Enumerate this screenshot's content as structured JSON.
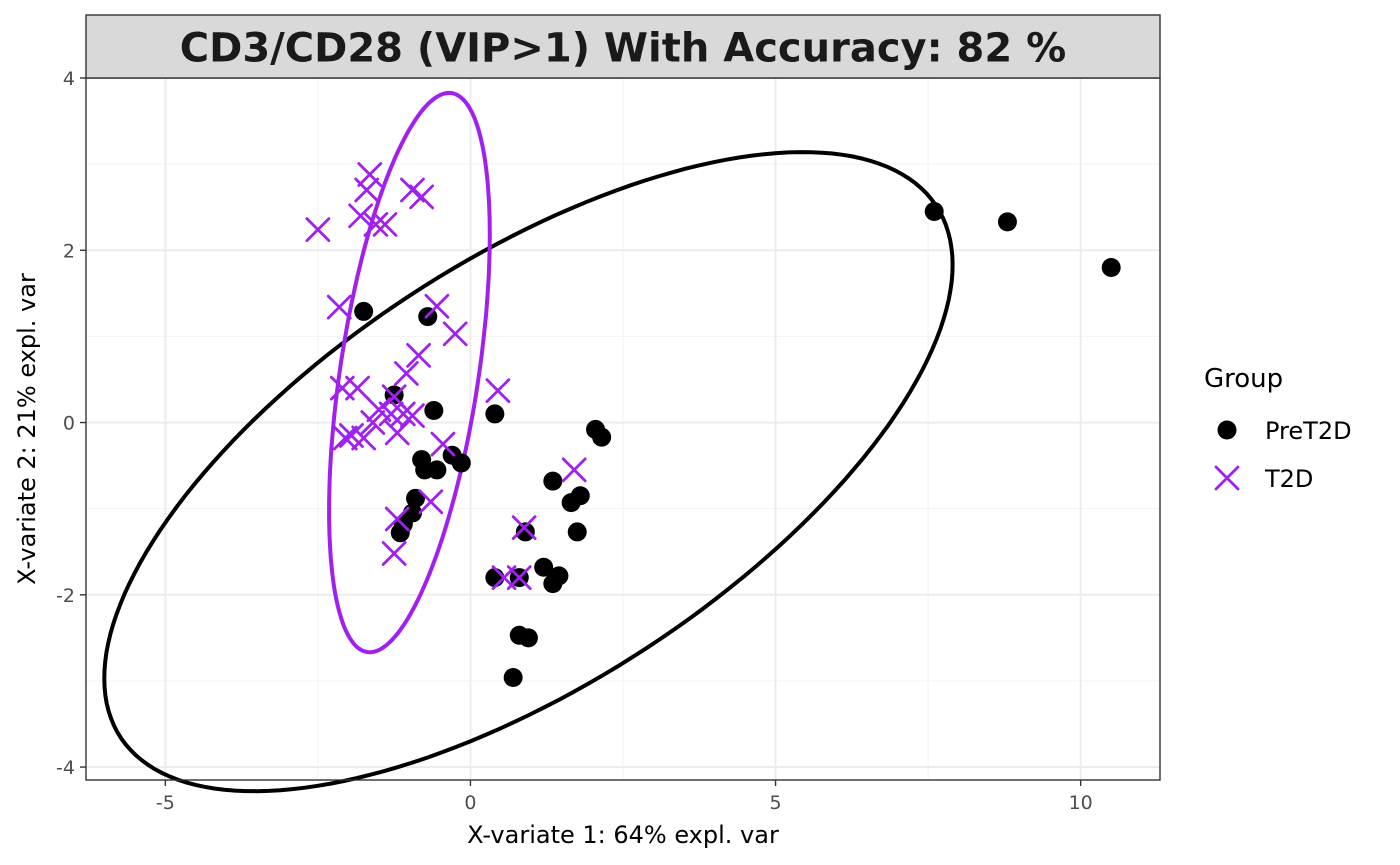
{
  "chart_data": {
    "type": "scatter",
    "title": "CD3/CD28 (VIP>1) With Accuracy: 82 %",
    "xlabel": "X-variate 1: 64% expl. var",
    "ylabel": "X-variate 2: 21% expl. var",
    "xlim": [
      -6.3,
      11.3
    ],
    "ylim": [
      -4.15,
      4.0
    ],
    "x_ticks": [
      -5,
      0,
      5,
      10
    ],
    "y_ticks": [
      -4,
      -2,
      0,
      2,
      4
    ],
    "grid": true,
    "legend_title": "Group",
    "legend_position": "right",
    "series": [
      {
        "name": "PreT2D",
        "color": "#000000",
        "marker": "circle",
        "points": [
          [
            7.6,
            2.45
          ],
          [
            8.8,
            2.33
          ],
          [
            10.5,
            1.8
          ],
          [
            -1.75,
            1.29
          ],
          [
            -0.7,
            1.23
          ],
          [
            -1.25,
            0.32
          ],
          [
            -0.6,
            0.14
          ],
          [
            0.4,
            0.1
          ],
          [
            2.05,
            -0.08
          ],
          [
            2.15,
            -0.17
          ],
          [
            -0.8,
            -0.43
          ],
          [
            -0.3,
            -0.38
          ],
          [
            -0.15,
            -0.47
          ],
          [
            -0.75,
            -0.55
          ],
          [
            -0.55,
            -0.55
          ],
          [
            1.35,
            -0.68
          ],
          [
            1.8,
            -0.85
          ],
          [
            1.65,
            -0.93
          ],
          [
            -0.9,
            -0.88
          ],
          [
            -0.95,
            -1.05
          ],
          [
            -1.1,
            -1.18
          ],
          [
            -1.15,
            -1.28
          ],
          [
            0.9,
            -1.27
          ],
          [
            1.75,
            -1.27
          ],
          [
            1.2,
            -1.68
          ],
          [
            1.45,
            -1.78
          ],
          [
            0.4,
            -1.8
          ],
          [
            0.8,
            -1.8
          ],
          [
            1.35,
            -1.87
          ],
          [
            0.8,
            -2.47
          ],
          [
            0.95,
            -2.5
          ],
          [
            0.7,
            -2.96
          ]
        ]
      },
      {
        "name": "T2D",
        "color": "#a020f0",
        "marker": "x",
        "points": [
          [
            -1.65,
            2.88
          ],
          [
            -1.7,
            2.7
          ],
          [
            -0.95,
            2.7
          ],
          [
            -0.8,
            2.62
          ],
          [
            -1.8,
            2.4
          ],
          [
            -1.55,
            2.3
          ],
          [
            -1.4,
            2.3
          ],
          [
            -2.5,
            2.24
          ],
          [
            -2.15,
            1.34
          ],
          [
            -0.55,
            1.35
          ],
          [
            -0.25,
            1.03
          ],
          [
            -0.85,
            0.78
          ],
          [
            -1.05,
            0.57
          ],
          [
            -2.1,
            0.4
          ],
          [
            -1.85,
            0.4
          ],
          [
            0.45,
            0.37
          ],
          [
            -1.25,
            0.3
          ],
          [
            -1.5,
            0.15
          ],
          [
            -1.3,
            0.1
          ],
          [
            -1.1,
            0.1
          ],
          [
            -0.95,
            0.08
          ],
          [
            -1.6,
            0.0
          ],
          [
            -1.2,
            -0.12
          ],
          [
            -1.95,
            -0.15
          ],
          [
            -2.05,
            -0.18
          ],
          [
            -1.75,
            -0.18
          ],
          [
            -0.45,
            -0.25
          ],
          [
            1.7,
            -0.55
          ],
          [
            -0.65,
            -0.92
          ],
          [
            -1.2,
            -1.12
          ],
          [
            0.88,
            -1.22
          ],
          [
            -1.25,
            -1.52
          ],
          [
            0.55,
            -1.8
          ],
          [
            0.8,
            -1.8
          ]
        ]
      }
    ],
    "ellipses": [
      {
        "group": "PreT2D",
        "center": [
          0.95,
          -0.57
        ],
        "semi_major": 7.42,
        "semi_minor": 2.65,
        "angle_deg": 22.0
      },
      {
        "group": "T2D",
        "center": [
          -1.0,
          0.58
        ],
        "semi_major": 3.32,
        "semi_minor": 1.12,
        "angle_deg": 77.2
      }
    ]
  }
}
